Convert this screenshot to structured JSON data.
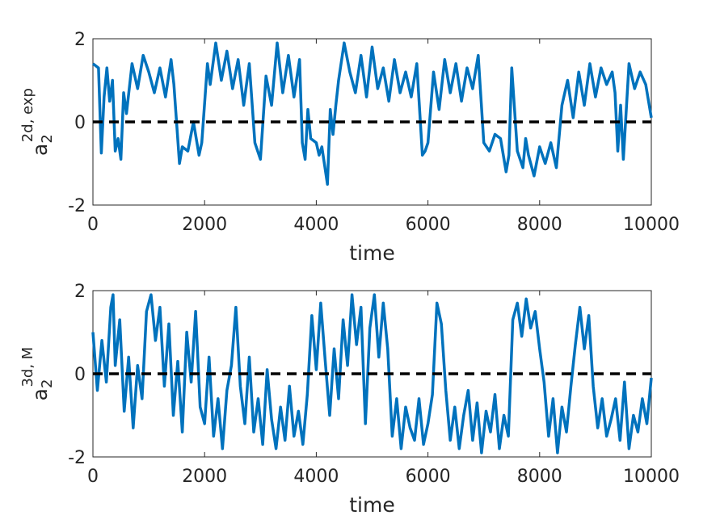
{
  "chart_data": [
    {
      "type": "line",
      "xlabel": "time",
      "ylabel": {
        "base": "a",
        "subscript": "2",
        "superscript": "2d, exp"
      },
      "xlim": [
        0,
        10000
      ],
      "ylim": [
        -2,
        2
      ],
      "xticks": [
        0,
        2000,
        4000,
        6000,
        8000,
        10000
      ],
      "yticks": [
        -2,
        0,
        2
      ],
      "tick_labels_x": [
        "0",
        "2000",
        "4000",
        "6000",
        "8000",
        "10000"
      ],
      "tick_labels_y": [
        "-2",
        "0",
        "2"
      ],
      "grid": false,
      "reference_line": {
        "y": 0,
        "style": "dashed",
        "color": "#000000"
      },
      "series": [
        {
          "color": "#0072BD",
          "x": [
            0,
            100,
            150,
            200,
            250,
            300,
            350,
            400,
            450,
            500,
            550,
            600,
            700,
            800,
            900,
            1000,
            1100,
            1200,
            1300,
            1400,
            1450,
            1550,
            1600,
            1700,
            1800,
            1900,
            1950,
            2050,
            2100,
            2200,
            2300,
            2400,
            2500,
            2600,
            2700,
            2800,
            2900,
            3000,
            3100,
            3200,
            3300,
            3400,
            3500,
            3600,
            3700,
            3750,
            3800,
            3850,
            3900,
            4000,
            4050,
            4100,
            4200,
            4250,
            4300,
            4350,
            4400,
            4500,
            4600,
            4700,
            4800,
            4900,
            5000,
            5100,
            5200,
            5300,
            5400,
            5500,
            5600,
            5700,
            5800,
            5900,
            5950,
            6000,
            6100,
            6200,
            6300,
            6400,
            6500,
            6600,
            6700,
            6800,
            6900,
            7000,
            7100,
            7200,
            7300,
            7400,
            7450,
            7500,
            7600,
            7700,
            7750,
            7800,
            7900,
            8000,
            8100,
            8200,
            8300,
            8400,
            8500,
            8600,
            8700,
            8800,
            8900,
            9000,
            9100,
            9200,
            9300,
            9350,
            9400,
            9450,
            9500,
            9600,
            9700,
            9800,
            9900,
            10000
          ],
          "y": [
            1.4,
            1.3,
            -0.75,
            0.6,
            1.3,
            0.5,
            1.0,
            -0.7,
            -0.4,
            -0.9,
            0.7,
            0.2,
            1.4,
            0.8,
            1.6,
            1.2,
            0.7,
            1.3,
            0.6,
            1.5,
            0.9,
            -1.0,
            -0.6,
            -0.7,
            0.0,
            -0.8,
            -0.5,
            1.4,
            0.9,
            1.9,
            1.0,
            1.7,
            0.8,
            1.5,
            0.4,
            1.4,
            -0.5,
            -0.9,
            1.1,
            0.4,
            1.9,
            0.7,
            1.6,
            0.6,
            1.5,
            -0.5,
            -0.9,
            0.3,
            -0.4,
            -0.5,
            -0.8,
            -0.6,
            -1.5,
            0.3,
            -0.3,
            0.4,
            1.0,
            1.9,
            1.2,
            0.7,
            1.6,
            0.6,
            1.8,
            0.8,
            1.3,
            0.5,
            1.5,
            0.7,
            1.2,
            0.6,
            1.4,
            -0.8,
            -0.7,
            -0.5,
            1.2,
            0.3,
            1.5,
            0.7,
            1.4,
            0.5,
            1.3,
            0.8,
            1.6,
            -0.5,
            -0.7,
            -0.3,
            -0.4,
            -1.2,
            -0.8,
            1.3,
            -0.7,
            -1.1,
            -0.4,
            -0.8,
            -1.3,
            -0.6,
            -1.0,
            -0.5,
            -1.1,
            0.4,
            1.0,
            0.1,
            1.2,
            0.4,
            1.4,
            0.6,
            1.3,
            0.9,
            1.2,
            0.7,
            -0.7,
            0.4,
            -0.9,
            1.4,
            0.8,
            1.2,
            0.9,
            0.1
          ]
        }
      ]
    },
    {
      "type": "line",
      "xlabel": "time",
      "ylabel": {
        "base": "a",
        "subscript": "2",
        "superscript": "3d, M"
      },
      "xlim": [
        0,
        10000
      ],
      "ylim": [
        -2,
        2
      ],
      "xticks": [
        0,
        2000,
        4000,
        6000,
        8000,
        10000
      ],
      "yticks": [
        -2,
        0,
        2
      ],
      "tick_labels_x": [
        "0",
        "2000",
        "4000",
        "6000",
        "8000",
        "10000"
      ],
      "tick_labels_y": [
        "-2",
        "0",
        "2"
      ],
      "grid": false,
      "reference_line": {
        "y": 0,
        "style": "dashed",
        "color": "#000000"
      },
      "series": [
        {
          "color": "#0072BD",
          "x": [
            0,
            80,
            160,
            240,
            320,
            360,
            400,
            480,
            560,
            640,
            720,
            800,
            880,
            960,
            1040,
            1120,
            1200,
            1280,
            1360,
            1440,
            1520,
            1600,
            1680,
            1760,
            1840,
            1920,
            2000,
            2080,
            2160,
            2240,
            2320,
            2400,
            2480,
            2560,
            2640,
            2720,
            2800,
            2880,
            2960,
            3040,
            3120,
            3200,
            3280,
            3360,
            3440,
            3520,
            3600,
            3680,
            3760,
            3840,
            3920,
            4000,
            4080,
            4160,
            4240,
            4320,
            4400,
            4480,
            4560,
            4640,
            4720,
            4800,
            4880,
            4960,
            5040,
            5120,
            5200,
            5280,
            5360,
            5440,
            5520,
            5600,
            5680,
            5760,
            5840,
            5920,
            6000,
            6080,
            6160,
            6240,
            6320,
            6400,
            6480,
            6560,
            6640,
            6720,
            6800,
            6880,
            6960,
            7040,
            7120,
            7200,
            7280,
            7360,
            7440,
            7520,
            7600,
            7680,
            7760,
            7840,
            7920,
            8000,
            8080,
            8160,
            8240,
            8320,
            8400,
            8480,
            8560,
            8640,
            8720,
            8800,
            8880,
            8960,
            9040,
            9120,
            9200,
            9280,
            9360,
            9440,
            9520,
            9600,
            9680,
            9760,
            9840,
            9920,
            10000
          ],
          "y": [
            1.0,
            -0.4,
            0.8,
            -0.2,
            1.6,
            1.9,
            0.2,
            1.3,
            -0.9,
            0.4,
            -1.3,
            0.2,
            -0.6,
            1.5,
            1.9,
            0.8,
            1.6,
            -0.3,
            1.2,
            -1.0,
            0.3,
            -1.4,
            1.0,
            -0.2,
            1.5,
            -0.8,
            -1.2,
            0.4,
            -1.5,
            -0.6,
            -1.8,
            -0.4,
            0.2,
            1.6,
            -0.3,
            -1.2,
            0.4,
            -1.4,
            -0.6,
            -1.7,
            0.1,
            -1.1,
            -1.8,
            -0.8,
            -1.6,
            -0.3,
            -1.5,
            -0.9,
            -1.7,
            -0.5,
            1.4,
            0.1,
            1.7,
            0.3,
            -1.0,
            0.6,
            -0.6,
            1.3,
            0.2,
            1.9,
            0.7,
            1.6,
            -1.2,
            1.1,
            1.9,
            0.4,
            1.7,
            0.6,
            -1.5,
            -0.6,
            -1.8,
            -0.8,
            -1.3,
            -1.6,
            -0.6,
            -1.7,
            -1.2,
            -0.5,
            1.7,
            1.2,
            -0.4,
            -1.6,
            -0.8,
            -1.8,
            -1.0,
            -0.4,
            -1.6,
            -0.7,
            -1.9,
            -0.9,
            -1.4,
            -0.5,
            -1.8,
            -1.0,
            -1.5,
            1.3,
            1.7,
            0.9,
            1.8,
            1.1,
            1.5,
            0.6,
            -0.2,
            -1.5,
            -0.6,
            -1.9,
            -0.8,
            -1.4,
            -0.3,
            0.7,
            1.6,
            0.6,
            1.4,
            -0.3,
            -1.3,
            -0.6,
            -1.5,
            -1.1,
            -0.6,
            -1.6,
            -0.2,
            -1.8,
            -1.0,
            -1.4,
            -0.6,
            -1.2,
            -0.1
          ]
        }
      ]
    }
  ]
}
